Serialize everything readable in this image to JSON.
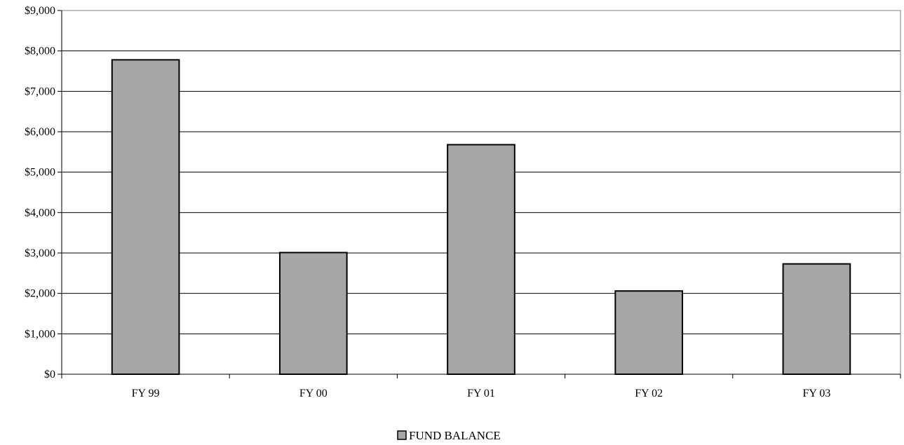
{
  "chart_data": {
    "type": "bar",
    "categories": [
      "FY 99",
      "FY 00",
      "FY 01",
      "FY 02",
      "FY 03"
    ],
    "series": [
      {
        "name": "FUND BALANCE",
        "values": [
          7780,
          3010,
          5680,
          2060,
          2730
        ],
        "color": "#a6a6a6"
      }
    ],
    "ylim": [
      0,
      9000
    ],
    "yticks": [
      0,
      1000,
      2000,
      3000,
      4000,
      5000,
      6000,
      7000,
      8000,
      9000
    ],
    "ytick_labels": [
      "$0",
      "$1,000",
      "$2,000",
      "$3,000",
      "$4,000",
      "$5,000",
      "$6,000",
      "$7,000",
      "$8,000",
      "$9,000"
    ],
    "grid": true,
    "legend_position": "bottom-center",
    "title": "",
    "xlabel": "",
    "ylabel": ""
  },
  "legend": {
    "label": "FUND BALANCE"
  }
}
